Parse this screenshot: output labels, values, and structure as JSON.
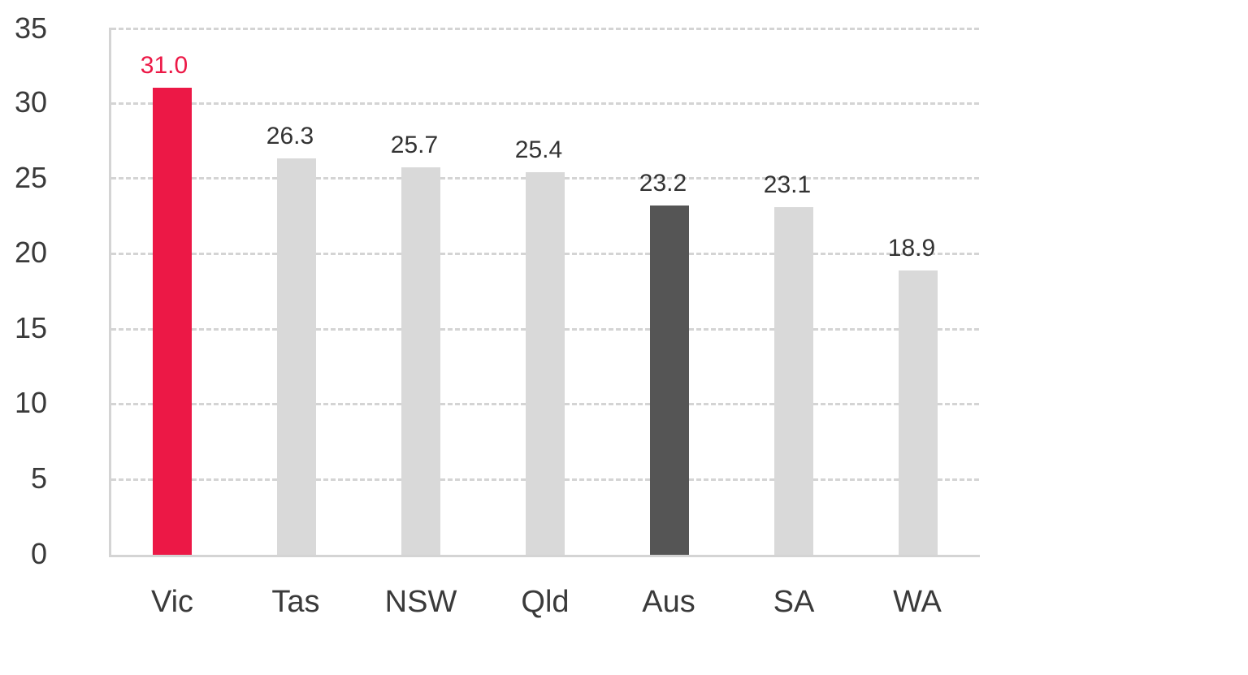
{
  "chart_data": {
    "type": "bar",
    "title": "",
    "xlabel": "",
    "ylabel": "",
    "ylim": [
      0,
      35
    ],
    "yticks": [
      "0",
      "5",
      "10",
      "15",
      "20",
      "25",
      "30",
      "35"
    ],
    "grid": true,
    "categories": [
      "Vic",
      "Tas",
      "NSW",
      "Qld",
      "Aus",
      "SA",
      "WA"
    ],
    "values": [
      31.0,
      26.3,
      25.7,
      25.4,
      23.2,
      23.1,
      18.9
    ],
    "value_labels": [
      "31.0",
      "26.3",
      "25.7",
      "25.4",
      "23.2",
      "23.1",
      "18.9"
    ],
    "colors": [
      "#ec1846",
      "#d9d9d9",
      "#d9d9d9",
      "#d9d9d9",
      "#555555",
      "#d9d9d9",
      "#d9d9d9"
    ],
    "label_colors": [
      "#ec1846",
      "#333333",
      "#333333",
      "#333333",
      "#333333",
      "#333333",
      "#333333"
    ]
  }
}
